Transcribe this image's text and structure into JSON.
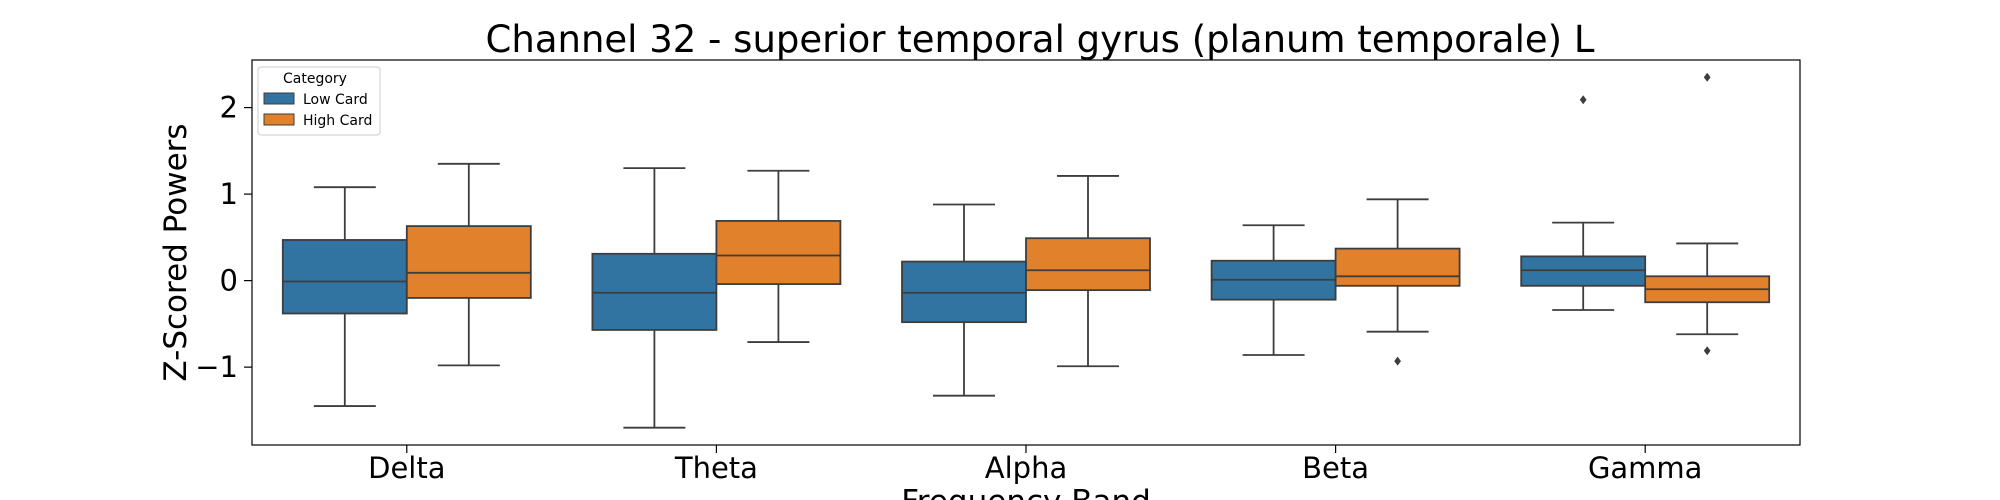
{
  "chart_data": {
    "type": "box",
    "title": "Channel 32 - superior temporal gyrus (planum temporale) L",
    "xlabel": "Frequency Band",
    "ylabel": "Z-Scored Powers",
    "categories": [
      "Delta",
      "Theta",
      "Alpha",
      "Beta",
      "Gamma"
    ],
    "yticks": [
      -1,
      0,
      1,
      2
    ],
    "ylim": [
      -1.9,
      2.55
    ],
    "legend": {
      "title": "Category",
      "placement": "top-left"
    },
    "series": [
      {
        "name": "Low Card",
        "color": "#3274a1",
        "boxes": [
          {
            "whisker_low": -1.45,
            "q1": -0.38,
            "median": -0.01,
            "q3": 0.47,
            "whisker_high": 1.08,
            "outliers": []
          },
          {
            "whisker_low": -1.7,
            "q1": -0.57,
            "median": -0.14,
            "q3": 0.31,
            "whisker_high": 1.3,
            "outliers": []
          },
          {
            "whisker_low": -1.33,
            "q1": -0.48,
            "median": -0.14,
            "q3": 0.22,
            "whisker_high": 0.88,
            "outliers": []
          },
          {
            "whisker_low": -0.86,
            "q1": -0.22,
            "median": 0.01,
            "q3": 0.23,
            "whisker_high": 0.64,
            "outliers": []
          },
          {
            "whisker_low": -0.34,
            "q1": -0.06,
            "median": 0.12,
            "q3": 0.28,
            "whisker_high": 0.67,
            "outliers": [
              2.09
            ]
          }
        ]
      },
      {
        "name": "High Card",
        "color": "#e1812c",
        "boxes": [
          {
            "whisker_low": -0.98,
            "q1": -0.2,
            "median": 0.09,
            "q3": 0.63,
            "whisker_high": 1.35,
            "outliers": []
          },
          {
            "whisker_low": -0.71,
            "q1": -0.04,
            "median": 0.29,
            "q3": 0.69,
            "whisker_high": 1.27,
            "outliers": []
          },
          {
            "whisker_low": -0.99,
            "q1": -0.11,
            "median": 0.12,
            "q3": 0.49,
            "whisker_high": 1.21,
            "outliers": []
          },
          {
            "whisker_low": -0.59,
            "q1": -0.06,
            "median": 0.05,
            "q3": 0.37,
            "whisker_high": 0.94,
            "outliers": [
              -0.93
            ]
          },
          {
            "whisker_low": -0.62,
            "q1": -0.25,
            "median": -0.1,
            "q3": 0.05,
            "whisker_high": 0.43,
            "outliers": [
              -0.81,
              2.35
            ]
          }
        ]
      }
    ]
  }
}
